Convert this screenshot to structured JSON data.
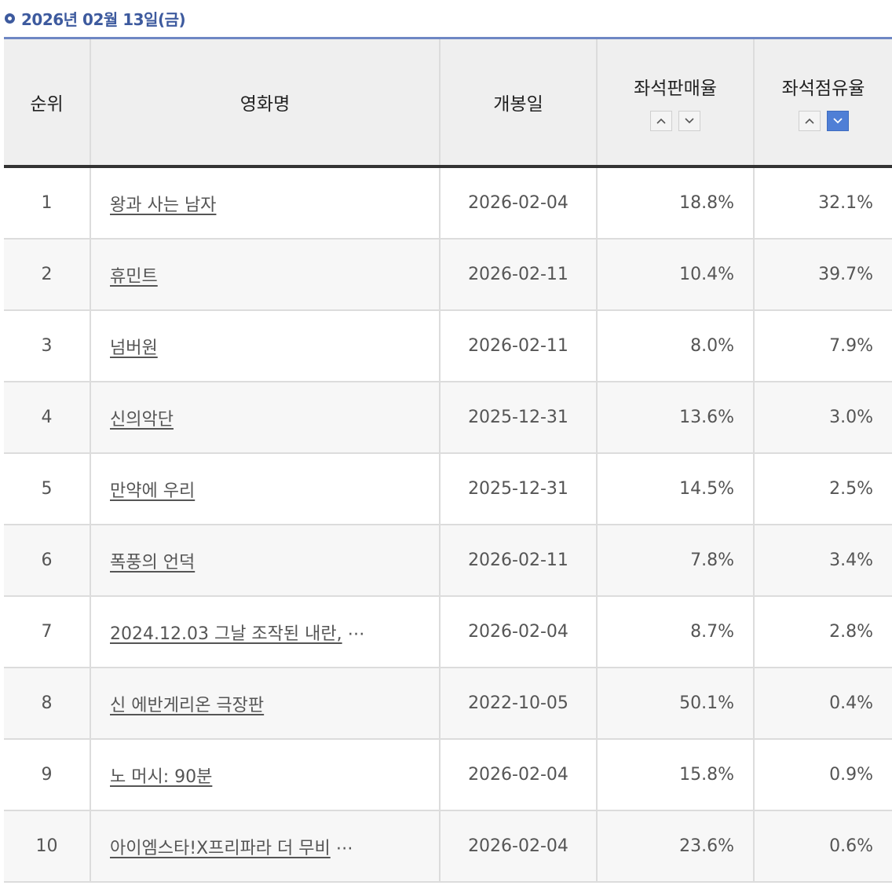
{
  "header": {
    "date": "2026년 02월 13일(금)"
  },
  "table": {
    "columns": {
      "rank": "순위",
      "title": "영화명",
      "open_date": "개봉일",
      "seat_sales": "좌석판매율",
      "seat_share": "좌석점유율"
    },
    "sort": {
      "asc": "^",
      "desc": "v"
    },
    "rows": [
      {
        "rank": "1",
        "title": "왕과 사는 남자",
        "open_date": "2026-02-04",
        "seat_sales": "18.8%",
        "seat_share": "32.1%"
      },
      {
        "rank": "2",
        "title": "휴민트",
        "open_date": "2026-02-11",
        "seat_sales": "10.4%",
        "seat_share": "39.7%"
      },
      {
        "rank": "3",
        "title": "넘버원",
        "open_date": "2026-02-11",
        "seat_sales": "8.0%",
        "seat_share": "7.9%"
      },
      {
        "rank": "4",
        "title": "신의악단",
        "open_date": "2025-12-31",
        "seat_sales": "13.6%",
        "seat_share": "3.0%"
      },
      {
        "rank": "5",
        "title": "만약에 우리",
        "open_date": "2025-12-31",
        "seat_sales": "14.5%",
        "seat_share": "2.5%"
      },
      {
        "rank": "6",
        "title": "폭풍의 언덕",
        "open_date": "2026-02-11",
        "seat_sales": "7.8%",
        "seat_share": "3.4%"
      },
      {
        "rank": "7",
        "title": "2024.12.03 그날 조작된 내란,",
        "open_date": "2026-02-04",
        "seat_sales": "8.7%",
        "seat_share": "2.8%"
      },
      {
        "rank": "8",
        "title": "신 에반게리온 극장판",
        "open_date": "2022-10-05",
        "seat_sales": "50.1%",
        "seat_share": "0.4%"
      },
      {
        "rank": "9",
        "title": "노 머시: 90분",
        "open_date": "2026-02-04",
        "seat_sales": "15.8%",
        "seat_share": "0.9%"
      },
      {
        "rank": "10",
        "title": "아이엠스타!X프리파라 더 무비",
        "open_date": "2026-02-04",
        "seat_sales": "23.6%",
        "seat_share": "0.6%"
      }
    ],
    "truncated_marker": "⋯",
    "truncated_rows": [
      7,
      10
    ]
  },
  "colors": {
    "accent": "#3d5a9e",
    "active_sort": "#4f7fd6"
  }
}
